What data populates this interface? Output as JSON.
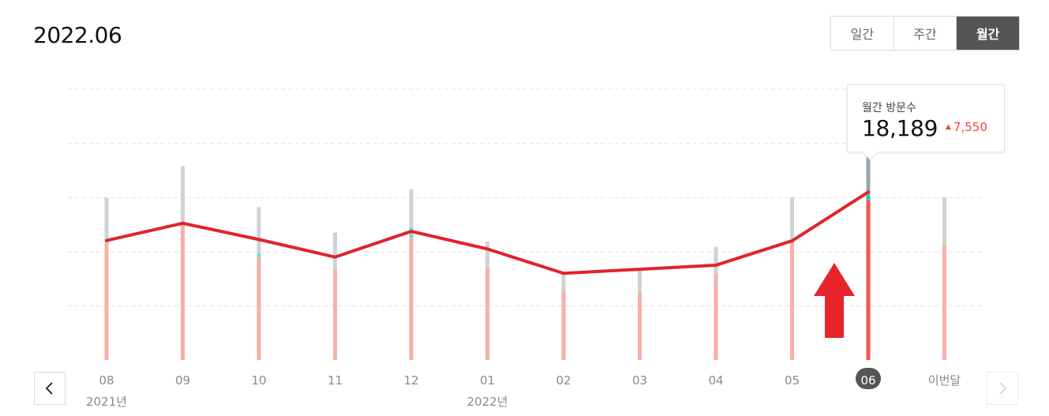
{
  "header": {
    "period_title": "2022.06"
  },
  "period_tabs": [
    {
      "label": "일간",
      "active": false
    },
    {
      "label": "주간",
      "active": false
    },
    {
      "label": "월간",
      "active": true
    }
  ],
  "tooltip": {
    "title": "월간 방문수",
    "value": "18,189",
    "delta": "7,550"
  },
  "colors": {
    "line": "#e0242a",
    "bar_base": "#f7b0a8",
    "bar_top": "#cdd2d8",
    "bar_accent": "#7fd8d0",
    "selected_base": "#f0574a",
    "selected_top": "#9aa3ad",
    "selected_accent": "#2ec4b0",
    "arrow": "#e8242a"
  },
  "icons": {
    "prev": "chevron-left-icon",
    "next": "chevron-right-icon",
    "annotation": "up-arrow-icon"
  },
  "chart_data": {
    "type": "bar",
    "categories": [
      "08",
      "09",
      "10",
      "11",
      "12",
      "01",
      "02",
      "03",
      "04",
      "05",
      "06",
      "이번달"
    ],
    "year_labels": [
      {
        "category": "08",
        "label": "2021년"
      },
      {
        "category": "01",
        "label": "2022년"
      }
    ],
    "selected": "06",
    "series": [
      {
        "values": [
          8820,
          10100,
          7600,
          6700,
          9000,
          6800,
          5100,
          5000,
          6400,
          8900,
          11800,
          8500
        ]
      },
      {
        "values": [
          0,
          0,
          300,
          0,
          800,
          0,
          0,
          0,
          0,
          0,
          400,
          0
        ]
      },
      {
        "values": [
          3150,
          4200,
          3400,
          2700,
          2800,
          1950,
          1250,
          1600,
          1950,
          3100,
          5990,
          3500
        ]
      }
    ],
    "line": {
      "values": [
        8820,
        10100,
        8900,
        7600,
        9500,
        8200,
        6400,
        6700,
        7000,
        8800,
        12400,
        null
      ]
    },
    "ylim": [
      0,
      20000
    ],
    "grid": true,
    "xlabel": "",
    "ylabel": ""
  }
}
